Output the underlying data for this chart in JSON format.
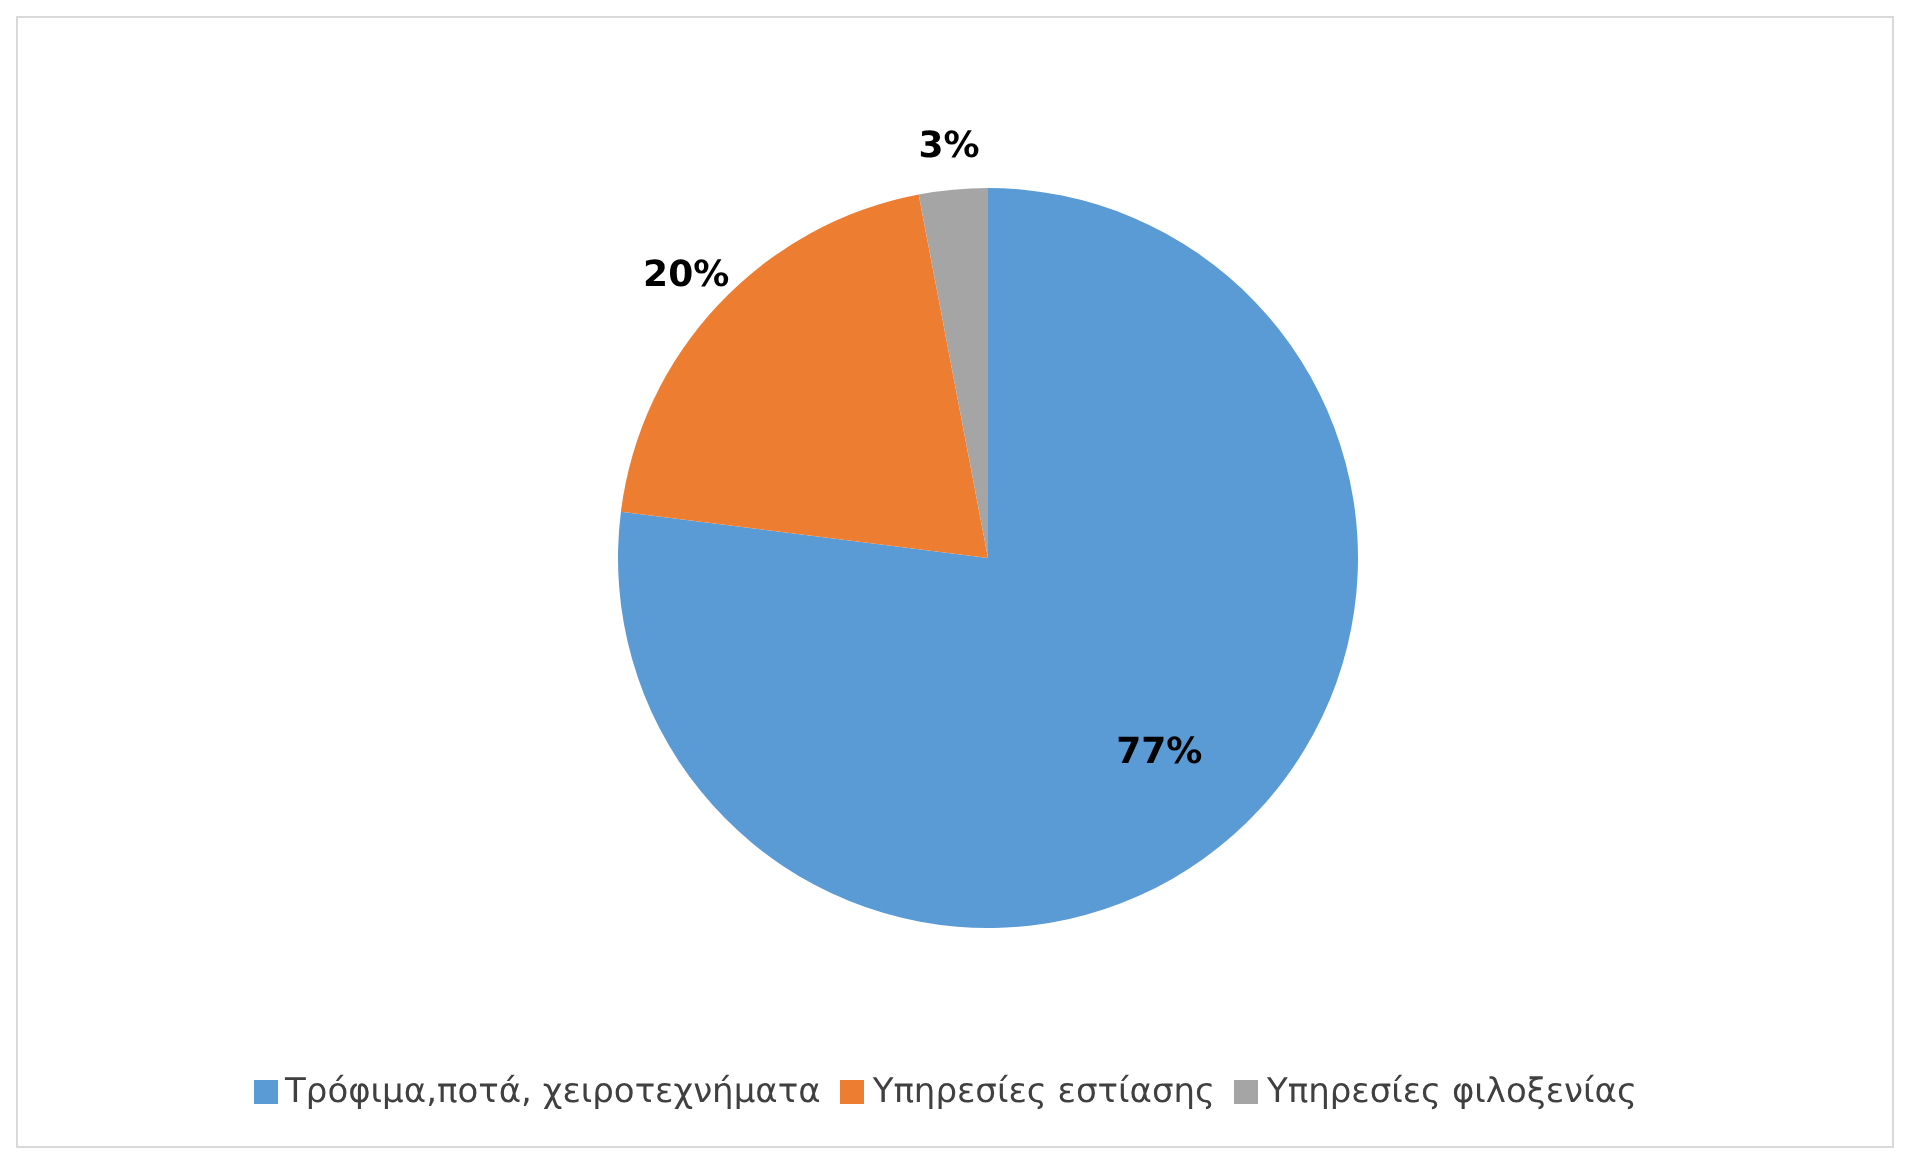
{
  "chart_data": {
    "type": "pie",
    "categories": [
      "Τρόφιμα,ποτά, χειροτεχνήματα",
      "Υπηρεσίες εστίασης",
      "Υπηρεσίες φιλοξενίας"
    ],
    "values": [
      77,
      20,
      3
    ],
    "colors": [
      "#5b9bd5",
      "#ed7d31",
      "#a5a5a5"
    ],
    "value_labels": [
      "77%",
      "20%",
      "3%"
    ],
    "legend": "bottom"
  }
}
